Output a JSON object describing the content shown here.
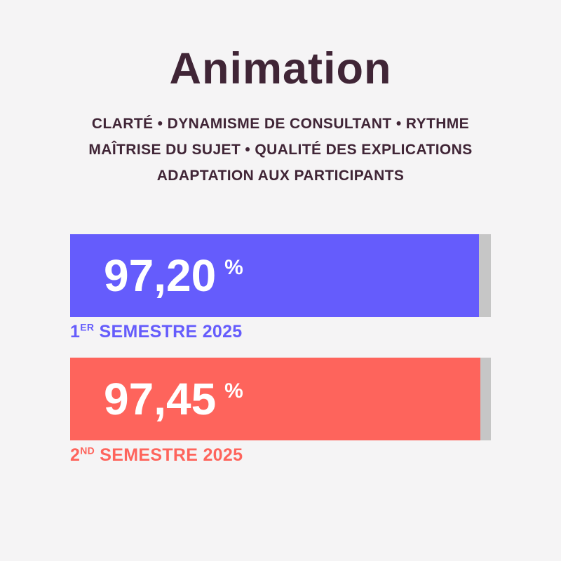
{
  "title": "Animation",
  "subtitle": {
    "lines": [
      "CLARTÉ • DYNAMISME DE CONSULTANT • RYTHME",
      "MAÎTRISE DU SUJET • QUALITÉ DES EXPLICATIONS",
      "ADAPTATION AUX PARTICIPANTS"
    ]
  },
  "colors": {
    "background": "#f5f4f5",
    "heading_text": "#402536",
    "bar1_fill": "#655cfc",
    "bar2_fill": "#fe645c",
    "bar_track": "#c6c6c6",
    "bar_value_text": "#ffffff"
  },
  "chart_data": {
    "type": "bar",
    "orientation": "horizontal",
    "title": "Animation",
    "categories": [
      "1er Semestre 2025",
      "2nd Semestre 2025"
    ],
    "values": [
      97.2,
      97.45
    ],
    "unit": "%",
    "xlim": [
      0,
      100
    ],
    "grid": false,
    "legend": false,
    "bars": [
      {
        "value": 97.2,
        "value_label": "97,20",
        "unit": "%",
        "label_number": "1",
        "label_ordinal": "ER",
        "label_rest": " SEMESTRE 2025",
        "color": "#655cfc"
      },
      {
        "value": 97.45,
        "value_label": "97,45",
        "unit": "%",
        "label_number": "2",
        "label_ordinal": "ND",
        "label_rest": " SEMESTRE 2025",
        "color": "#fe645c"
      }
    ]
  }
}
